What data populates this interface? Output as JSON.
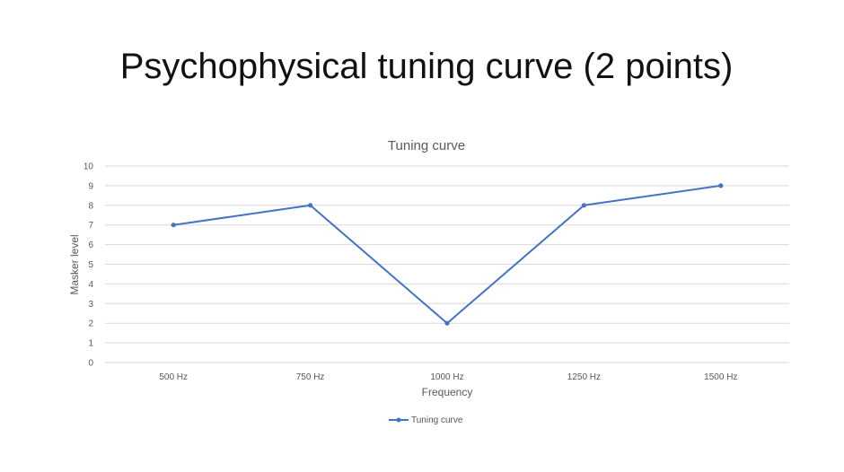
{
  "slide": {
    "title": "Psychophysical tuning curve (2 points)"
  },
  "chart_data": {
    "type": "line",
    "title": "Tuning curve",
    "xlabel": "Frequency",
    "ylabel": "Masker level",
    "categories": [
      "500 Hz",
      "750 Hz",
      "1000 Hz",
      "1250 Hz",
      "1500 Hz"
    ],
    "series": [
      {
        "name": "Tuning curve",
        "values": [
          7,
          8,
          2,
          8,
          9
        ],
        "color": "#4472C4"
      }
    ],
    "ylim": [
      0,
      10
    ],
    "yticks": [
      0,
      1,
      2,
      3,
      4,
      5,
      6,
      7,
      8,
      9,
      10
    ],
    "grid": true,
    "legend": "bottom",
    "colors": {
      "grid": "#D9D9D9",
      "text": "#595959"
    }
  }
}
